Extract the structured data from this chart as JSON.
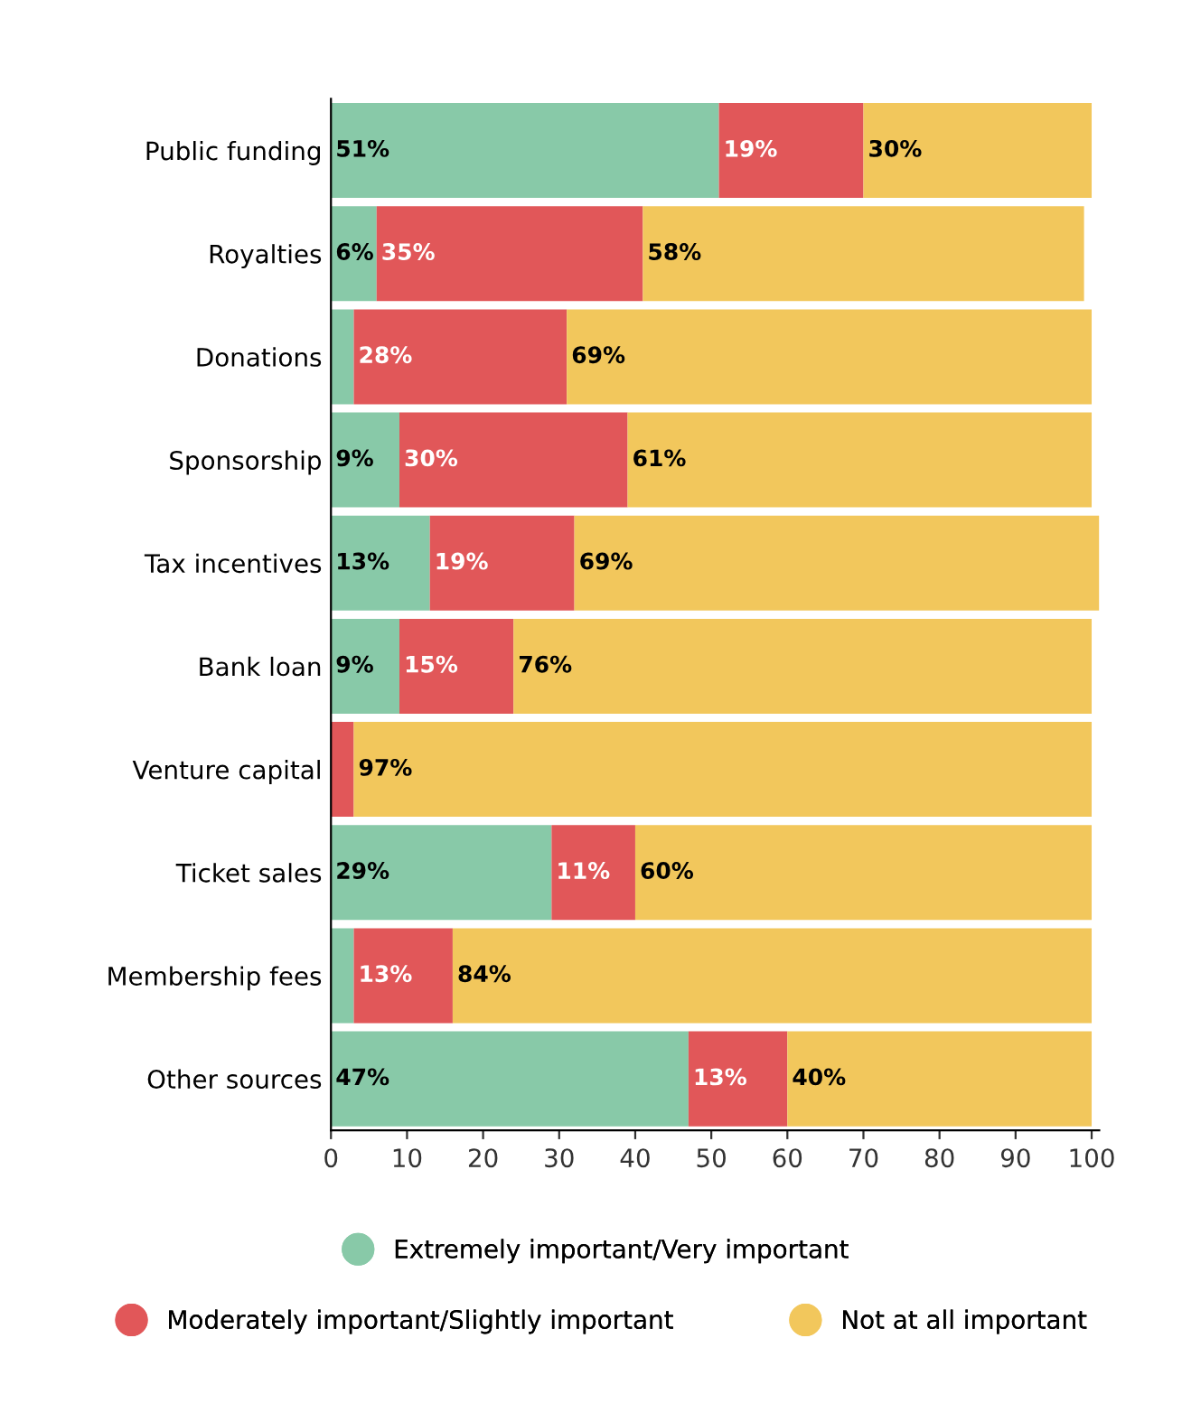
{
  "chart_data": {
    "type": "bar",
    "orientation": "horizontal",
    "stacked": true,
    "categories": [
      "Public funding",
      "Royalties",
      "Donations",
      "Sponsorship",
      "Tax incentives",
      "Bank loan",
      "Venture capital",
      "Ticket sales",
      "Membership fees",
      "Other sources"
    ],
    "series": [
      {
        "name": "Extremely important/Very important",
        "color": "#88c9a8",
        "values": [
          51,
          6,
          3,
          9,
          13,
          9,
          0,
          29,
          3,
          47
        ],
        "value_labels": [
          "51%",
          "6%",
          null,
          "9%",
          "13%",
          "9%",
          null,
          "29%",
          null,
          "47%"
        ]
      },
      {
        "name": "Moderately important/Slightly important",
        "color": "#e15759",
        "values": [
          19,
          35,
          28,
          30,
          19,
          15,
          3,
          11,
          13,
          13
        ],
        "value_labels": [
          "19%",
          "35%",
          "28%",
          "30%",
          "19%",
          "15%",
          null,
          "11%",
          "13%",
          "13%"
        ]
      },
      {
        "name": "Not at all important",
        "color": "#f2c75c",
        "values": [
          30,
          58,
          69,
          61,
          69,
          76,
          97,
          60,
          84,
          40
        ],
        "value_labels": [
          "30%",
          "58%",
          "69%",
          "61%",
          "69%",
          "76%",
          "97%",
          "60%",
          "84%",
          "40%"
        ]
      }
    ],
    "xlim": [
      0,
      101
    ],
    "xticks": [
      0,
      10,
      20,
      30,
      40,
      50,
      60,
      70,
      80,
      90,
      100
    ],
    "grid": false,
    "legend": "bottom",
    "marker": "circle"
  }
}
